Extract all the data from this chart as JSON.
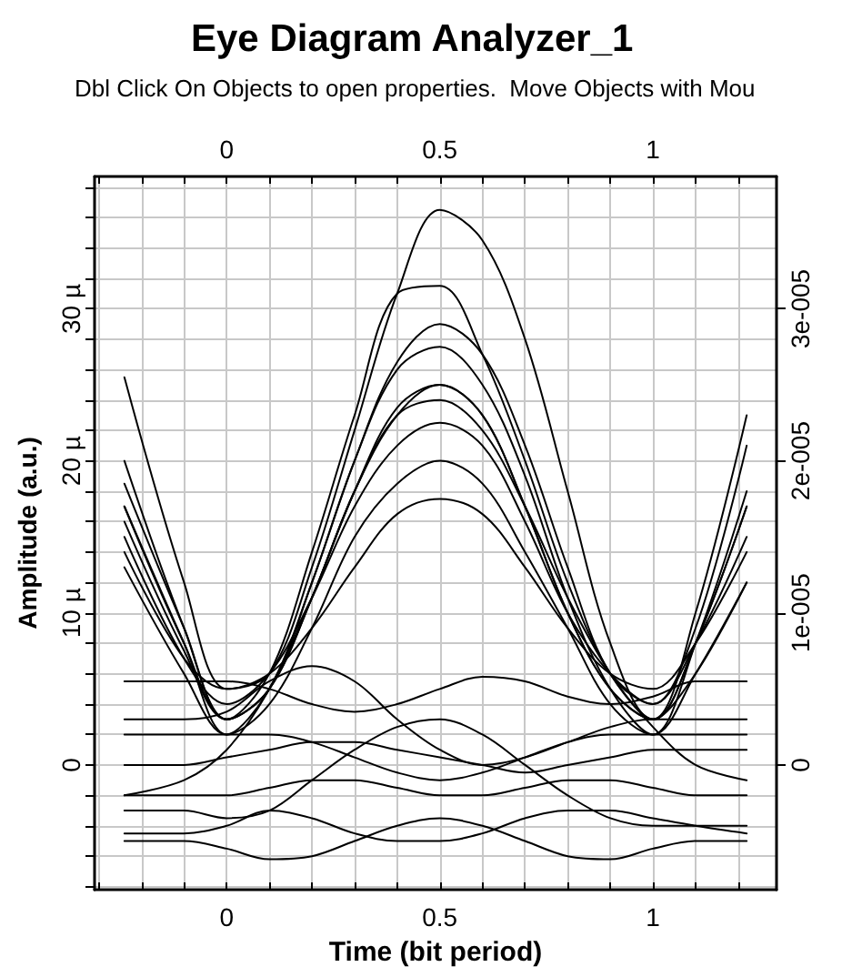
{
  "chart_data": {
    "type": "line",
    "title": "Eye Diagram Analyzer_1",
    "subtitle": "Dbl Click On Objects to open properties.  Move Objects with Mou",
    "xlabel": "Time (bit period)",
    "ylabel": "Amplitude (a.u.)",
    "x": [
      -0.24,
      -0.1,
      0,
      0.1,
      0.2,
      0.3,
      0.4,
      0.5,
      0.6,
      0.7,
      0.8,
      0.9,
      1,
      1.1,
      1.22
    ],
    "xlim": [
      -0.31,
      1.29
    ],
    "xticks": [
      {
        "value": -0.3,
        "label": null
      },
      {
        "value": -0.2,
        "label": null
      },
      {
        "value": -0.1,
        "label": null
      },
      0,
      {
        "value": 0.1,
        "label": null
      },
      {
        "value": 0.2,
        "label": null
      },
      {
        "value": 0.3,
        "label": null
      },
      {
        "value": 0.4,
        "label": null
      },
      0.5,
      {
        "value": 0.6,
        "label": null
      },
      {
        "value": 0.7,
        "label": null
      },
      {
        "value": 0.8,
        "label": null
      },
      {
        "value": 0.9,
        "label": null
      },
      1,
      {
        "value": 1.1,
        "label": null
      },
      {
        "value": 1.2,
        "label": null
      }
    ],
    "x2lim": [
      -0.31,
      1.29
    ],
    "x2ticks": [
      {
        "value": -0.3,
        "label": null
      },
      {
        "value": -0.2,
        "label": null
      },
      {
        "value": -0.1,
        "label": null
      },
      0,
      {
        "value": 0.1,
        "label": null
      },
      {
        "value": 0.2,
        "label": null
      },
      {
        "value": 0.3,
        "label": null
      },
      {
        "value": 0.4,
        "label": null
      },
      0.5,
      {
        "value": 0.6,
        "label": null
      },
      {
        "value": 0.7,
        "label": null
      },
      {
        "value": 0.8,
        "label": null
      },
      {
        "value": 0.9,
        "label": null
      },
      1,
      {
        "value": 1.1,
        "label": null
      },
      {
        "value": 1.2,
        "label": null
      }
    ],
    "ylim": [
      -8.2,
      38.7
    ],
    "yticks": [
      {
        "value": -8,
        "label": null
      },
      {
        "value": -6,
        "label": null
      },
      {
        "value": -4,
        "label": null
      },
      {
        "value": -2,
        "label": null
      },
      0,
      {
        "value": 2,
        "label": null
      },
      {
        "value": 4,
        "label": null
      },
      {
        "value": 6,
        "label": null
      },
      {
        "value": 8,
        "label": null
      },
      {
        "value": 10,
        "label": "10 µ"
      },
      {
        "value": 12,
        "label": null
      },
      {
        "value": 14,
        "label": null
      },
      {
        "value": 16,
        "label": null
      },
      {
        "value": 18,
        "label": null
      },
      {
        "value": 20,
        "label": "20 µ"
      },
      {
        "value": 22,
        "label": null
      },
      {
        "value": 24,
        "label": null
      },
      {
        "value": 26,
        "label": null
      },
      {
        "value": 28,
        "label": null
      },
      {
        "value": 30,
        "label": "30 µ"
      },
      {
        "value": 32,
        "label": null
      },
      {
        "value": 34,
        "label": null
      },
      {
        "value": 36,
        "label": null
      },
      {
        "value": 38,
        "label": null
      }
    ],
    "y2lim": [
      -8.2e-06,
      3.87e-05
    ],
    "y2ticks": [
      0,
      {
        "value": 1e-05,
        "label": "1e-005"
      },
      {
        "value": 2e-05,
        "label": "2e-005"
      },
      {
        "value": 3e-05,
        "label": "3e-005"
      }
    ],
    "grid": true,
    "marker": "none",
    "line_style": "solid",
    "series": [
      {
        "color": "#000000",
        "values": [
          25.5,
          12,
          5,
          6,
          13,
          22,
          31,
          36.5,
          34.5,
          28,
          18,
          8,
          3,
          6,
          12
        ]
      },
      {
        "color": "#000000",
        "values": [
          20,
          9,
          3,
          6,
          14,
          23,
          31,
          31.5,
          27,
          20,
          12,
          6,
          3,
          10,
          23
        ]
      },
      {
        "color": "#000000",
        "values": [
          18.5,
          9,
          3,
          5,
          12,
          20,
          26.5,
          29,
          27,
          21,
          13,
          6,
          4,
          9,
          21
        ]
      },
      {
        "color": "#000000",
        "values": [
          17,
          8,
          2,
          5,
          12,
          20,
          26,
          27.5,
          25,
          19,
          11,
          5,
          2,
          8,
          18
        ]
      },
      {
        "color": "#000000",
        "values": [
          16,
          7.5,
          3,
          5,
          11,
          18,
          23.5,
          25,
          23,
          17,
          10,
          5,
          3,
          8,
          17
        ]
      },
      {
        "color": "#000000",
        "values": [
          15,
          7,
          4,
          6,
          11,
          17,
          21,
          22.5,
          21,
          16,
          10,
          6,
          4,
          8,
          15
        ]
      },
      {
        "color": "#000000",
        "values": [
          13,
          6,
          2,
          4,
          9,
          15,
          18.5,
          20,
          18.5,
          14,
          9,
          4,
          2,
          6,
          12
        ]
      },
      {
        "color": "#000000",
        "values": [
          14,
          7,
          5,
          6,
          9,
          13,
          16.5,
          17.5,
          16.5,
          13,
          9,
          6,
          5,
          8,
          14
        ]
      },
      {
        "color": "#000000",
        "values": [
          17,
          8,
          3,
          5,
          11,
          18,
          23,
          24,
          22,
          17,
          11,
          6,
          2.5,
          0,
          -1
        ]
      },
      {
        "color": "#000000",
        "values": [
          -2,
          -1,
          1,
          5,
          11,
          18,
          23,
          25,
          23,
          17,
          10,
          5,
          3,
          8,
          17
        ]
      },
      {
        "color": "#000000",
        "values": [
          5.5,
          5.5,
          5.5,
          5,
          4,
          3.5,
          4,
          5,
          5.8,
          5.5,
          4.5,
          4,
          4.5,
          5.5,
          5.5
        ]
      },
      {
        "color": "#000000",
        "values": [
          3,
          3,
          3.5,
          5.5,
          6.5,
          5.5,
          3,
          1,
          0,
          0.5,
          1.5,
          2.5,
          3,
          3,
          3
        ]
      },
      {
        "color": "#000000",
        "values": [
          0,
          0,
          0.5,
          1,
          1.5,
          1.5,
          1,
          0.5,
          0,
          -0.5,
          0,
          0.5,
          1,
          1,
          1
        ]
      },
      {
        "color": "#000000",
        "values": [
          -2,
          -2,
          -2,
          -1.5,
          -1,
          -1,
          -1.5,
          -2,
          -2,
          -1.5,
          -1,
          -1,
          -1.5,
          -2,
          -2
        ]
      },
      {
        "color": "#000000",
        "values": [
          -5,
          -5,
          -5.5,
          -6.2,
          -6,
          -5,
          -4,
          -3.5,
          -4,
          -5,
          -6,
          -6.2,
          -5.5,
          -5,
          -5
        ]
      },
      {
        "color": "#000000",
        "values": [
          -3,
          -3,
          -3.5,
          -3,
          -1,
          1,
          2.5,
          3,
          2,
          0,
          -2,
          -3.5,
          -4,
          -4,
          -4
        ]
      },
      {
        "color": "#000000",
        "values": [
          2,
          2,
          2,
          2,
          1.5,
          0.5,
          -0.5,
          -1,
          -0.5,
          0.5,
          1.5,
          2,
          2,
          2,
          2
        ]
      },
      {
        "color": "#000000",
        "values": [
          -4.5,
          -4.5,
          -4,
          -3,
          -3.5,
          -4.5,
          -5,
          -5,
          -4.5,
          -3.5,
          -3,
          -3,
          -3.5,
          -4,
          -4.5
        ]
      }
    ]
  }
}
